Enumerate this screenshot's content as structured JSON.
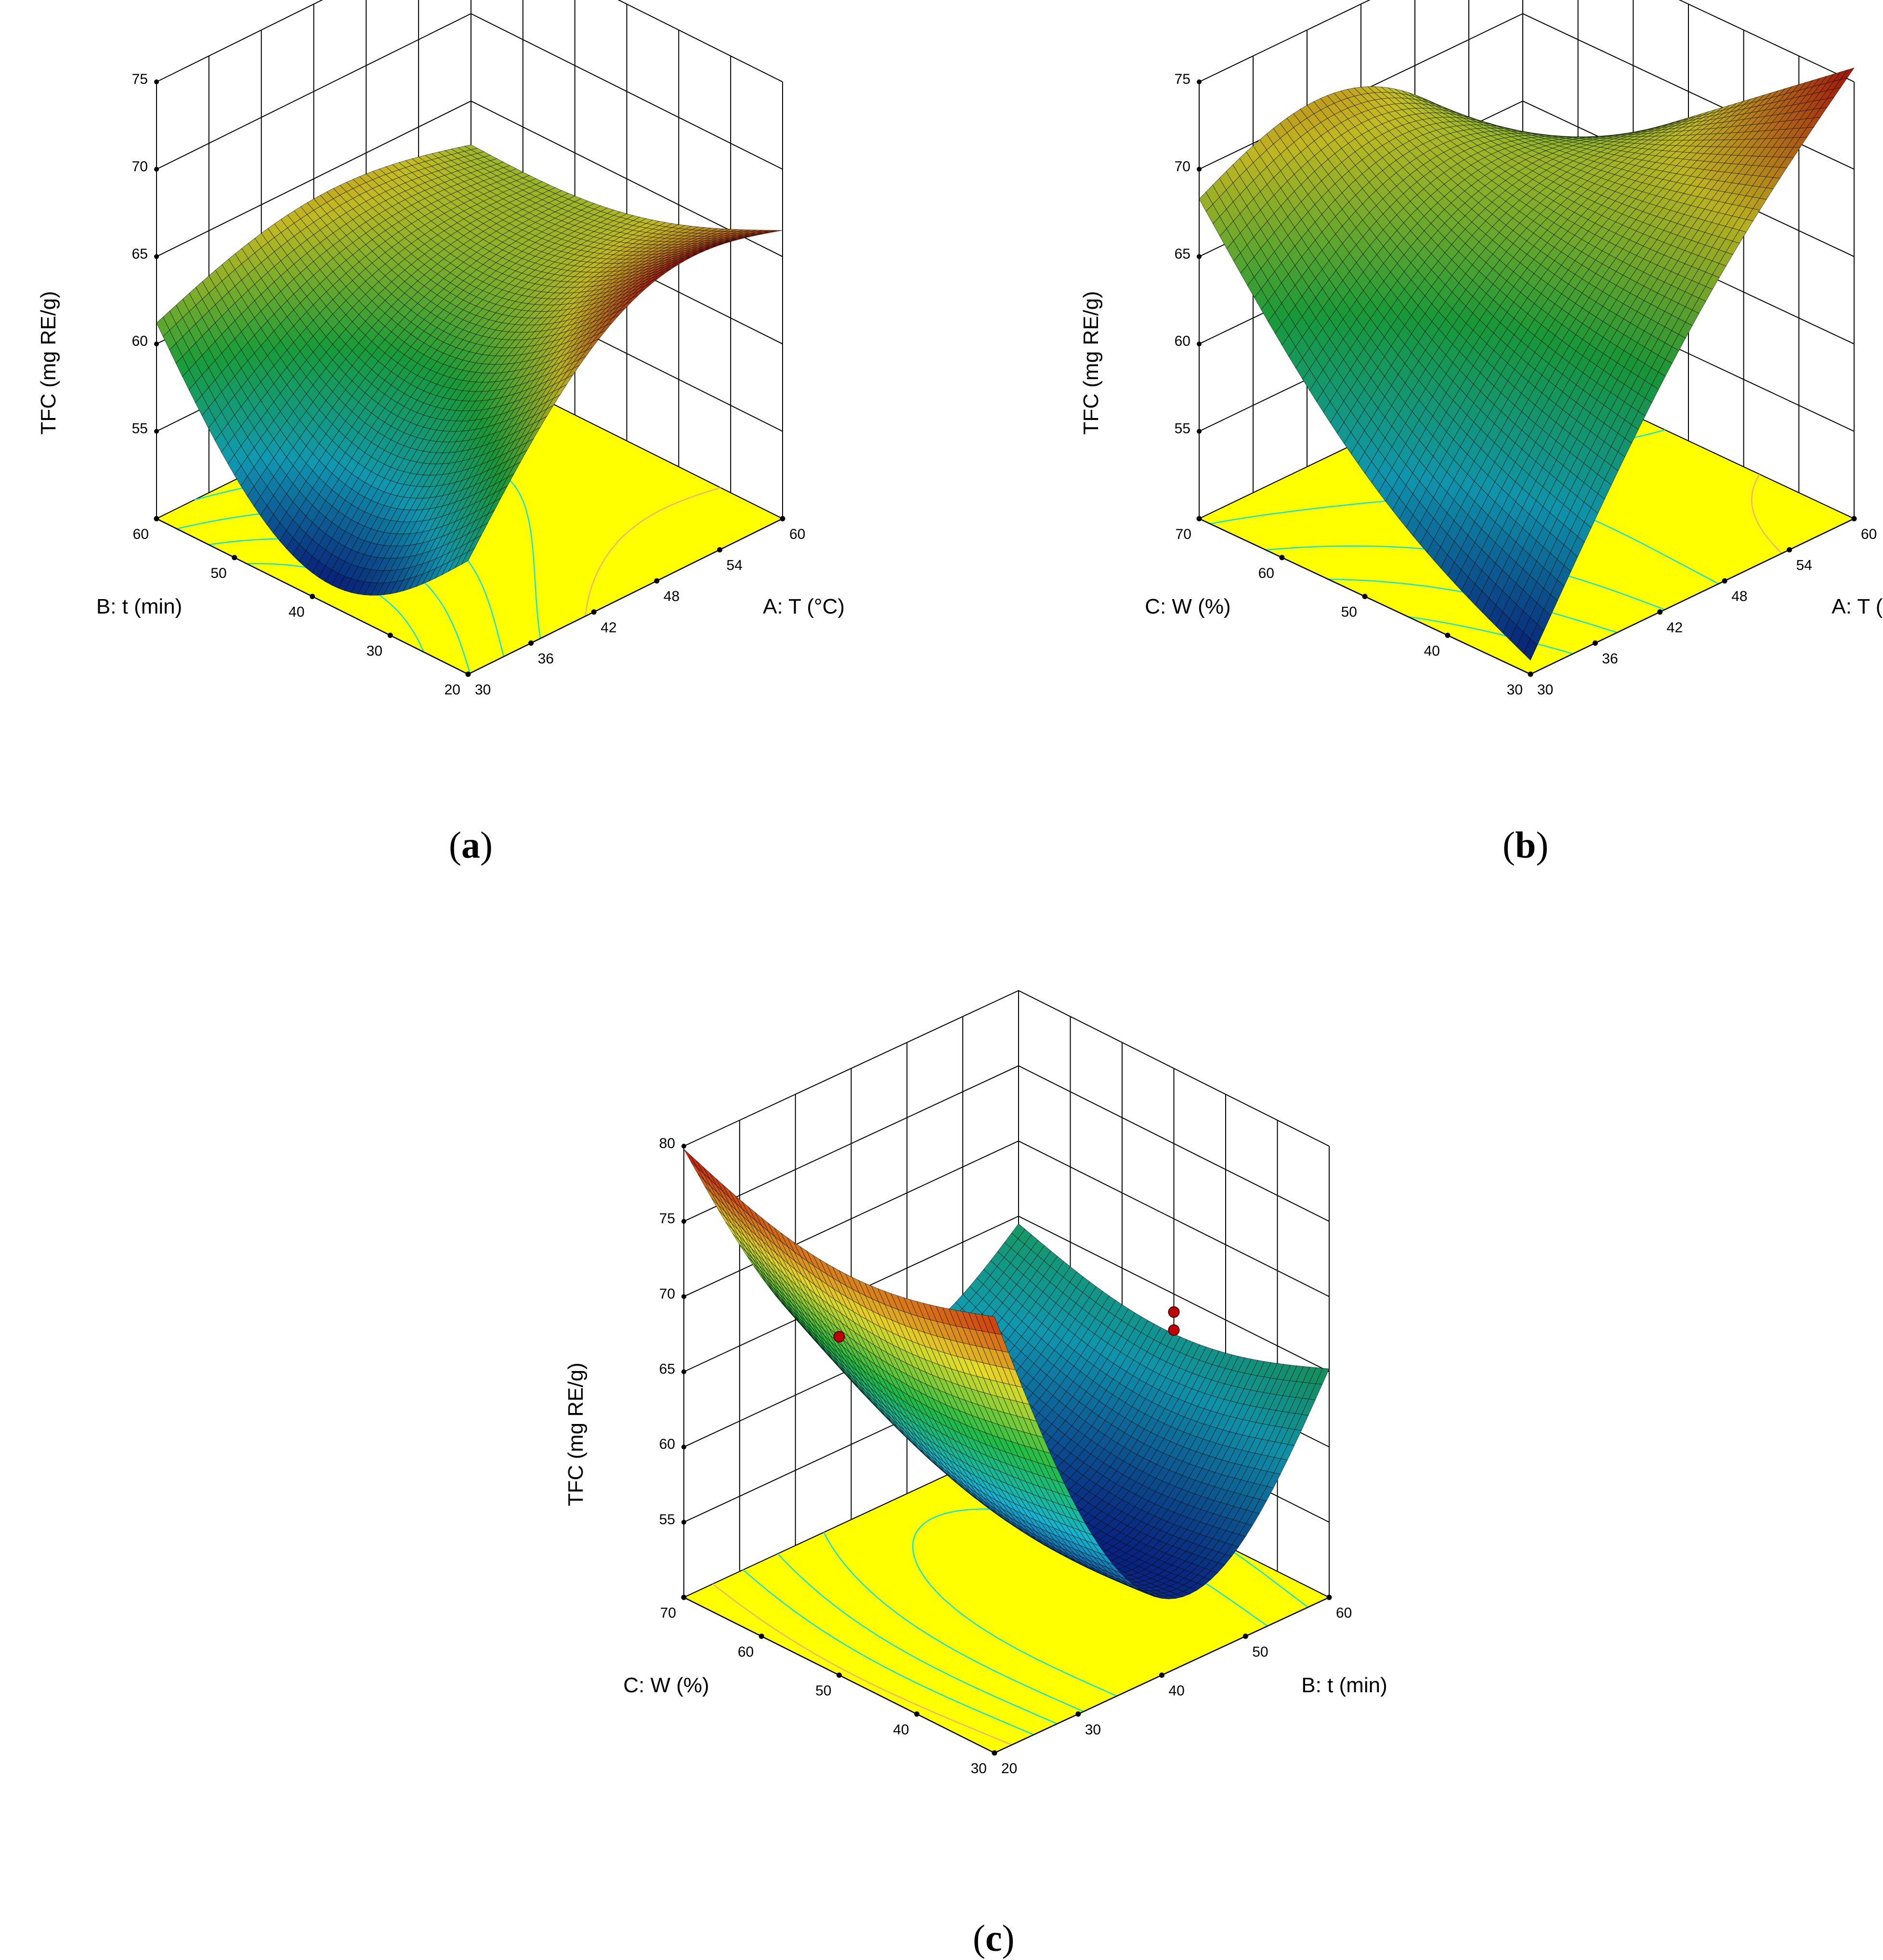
{
  "chart_data": [
    {
      "panel": "a",
      "caption": "a",
      "type": "surface3d",
      "zlabel": "TFC (mg RE/g)",
      "xlabel": "A: T (°C)",
      "ylabel": "B: t (min)",
      "z_ticks": [
        "55",
        "60",
        "65",
        "70",
        "75"
      ],
      "x_ticks": [
        "30",
        "36",
        "42",
        "48",
        "54",
        "60"
      ],
      "y_ticks": [
        "20",
        "30",
        "40",
        "50",
        "60"
      ],
      "x_range": [
        30,
        60
      ],
      "y_range": [
        20,
        60
      ],
      "z_range": [
        50,
        75
      ],
      "corner_values": {
        "x30_y20": 56.5,
        "x60_y20": 66.5,
        "x30_y60": 61.2,
        "x60_y60": 62.5
      },
      "colormap": "blue-green-yellow-red",
      "floor_color": "#ffff00",
      "contour_color": "#00e6e6"
    },
    {
      "panel": "b",
      "caption": "b",
      "type": "surface3d",
      "zlabel": "TFC (mg RE/g)",
      "xlabel": "A: T (°C)",
      "ylabel": "C: W (%)",
      "z_ticks": [
        "55",
        "60",
        "65",
        "70",
        "75"
      ],
      "x_ticks": [
        "30",
        "36",
        "42",
        "48",
        "54",
        "60"
      ],
      "y_ticks": [
        "30",
        "40",
        "50",
        "60",
        "70"
      ],
      "x_range": [
        30,
        60
      ],
      "y_range": [
        30,
        70
      ],
      "z_range": [
        50,
        75
      ],
      "corner_values": {
        "x30_y30": 50.8,
        "x60_y30": 75.8,
        "x30_y70": 68.3,
        "x60_y70": 61.2
      },
      "colormap": "blue-green-yellow-red",
      "floor_color": "#ffff00",
      "contour_color": "#00e6e6"
    },
    {
      "panel": "c",
      "caption": "c",
      "type": "surface3d",
      "zlabel": "TFC (mg RE/g)",
      "xlabel": "B: t (min)",
      "ylabel": "C: W (%)",
      "z_ticks": [
        "55",
        "60",
        "65",
        "70",
        "75",
        "80"
      ],
      "x_ticks": [
        "20",
        "30",
        "40",
        "50",
        "60"
      ],
      "y_ticks": [
        "30",
        "40",
        "50",
        "60",
        "70"
      ],
      "x_range": [
        20,
        60
      ],
      "y_range": [
        30,
        70
      ],
      "z_range": [
        50,
        80
      ],
      "corner_values": {
        "x20_y30": 79.0,
        "x60_y30": 65.2,
        "x20_y70": 79.8,
        "x60_y70": 64.5
      },
      "colormap": "blue-green-yellow-red",
      "floor_color": "#ffff00",
      "contour_color": "#00e6e6",
      "design_points": [
        {
          "x": 20,
          "y": 50,
          "z": 72.5
        },
        {
          "x": 60,
          "y": 50,
          "z": 63.8
        },
        {
          "x": 60,
          "y": 50,
          "z": 62.6
        }
      ]
    }
  ]
}
